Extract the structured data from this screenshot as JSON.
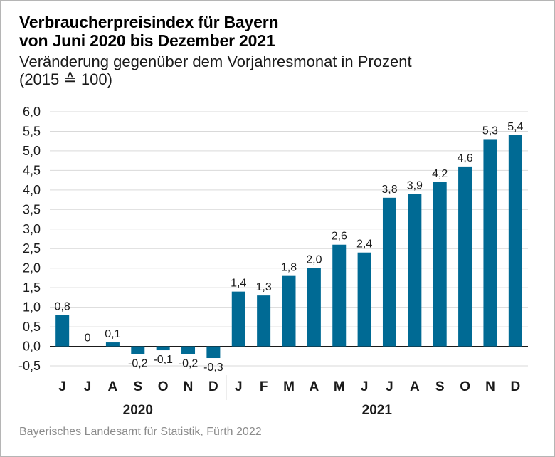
{
  "chart_data": {
    "type": "bar",
    "title_lines": [
      "Verbraucherpreisindex für Bayern",
      "von Juni 2020 bis Dezember 2021"
    ],
    "subtitle_lines": [
      "Veränderung gegenüber dem Vorjahresmonat in Prozent",
      "(2015 ≙ 100)"
    ],
    "categories": [
      "J",
      "J",
      "A",
      "S",
      "O",
      "N",
      "D",
      "J",
      "F",
      "M",
      "A",
      "M",
      "J",
      "J",
      "A",
      "S",
      "O",
      "N",
      "D"
    ],
    "values": [
      0.8,
      0,
      0.1,
      -0.2,
      -0.1,
      -0.2,
      -0.3,
      1.4,
      1.3,
      1.8,
      2.0,
      2.6,
      2.4,
      3.8,
      3.9,
      4.2,
      4.6,
      5.3,
      5.4
    ],
    "value_labels": [
      "0,8",
      "0",
      "0,1",
      "-0,2",
      "-0,1",
      "-0,2",
      "-0,3",
      "1,4",
      "1,3",
      "1,8",
      "2,0",
      "2,6",
      "2,4",
      "3,8",
      "3,9",
      "4,2",
      "4,6",
      "5,3",
      "5,4"
    ],
    "year_groups": [
      {
        "label": "2020",
        "start": 0,
        "end": 6
      },
      {
        "label": "2021",
        "start": 7,
        "end": 18
      }
    ],
    "ylim": [
      -0.5,
      6.0
    ],
    "yticks": [
      -0.5,
      0.0,
      0.5,
      1.0,
      1.5,
      2.0,
      2.5,
      3.0,
      3.5,
      4.0,
      4.5,
      5.0,
      5.5,
      6.0
    ],
    "ytick_labels": [
      "-0,5",
      "0,0",
      "0,5",
      "1,0",
      "1,5",
      "2,0",
      "2,5",
      "3,0",
      "3,5",
      "4,0",
      "4,5",
      "5,0",
      "5,5",
      "6,0"
    ],
    "xlabel": "",
    "ylabel": "",
    "grid": true,
    "colors": {
      "bar": "#006a94",
      "grid": "#d9d9d9",
      "axis": "#1a1a1a"
    }
  },
  "source": "Bayerisches Landesamt für Statistik, Fürth 2022"
}
